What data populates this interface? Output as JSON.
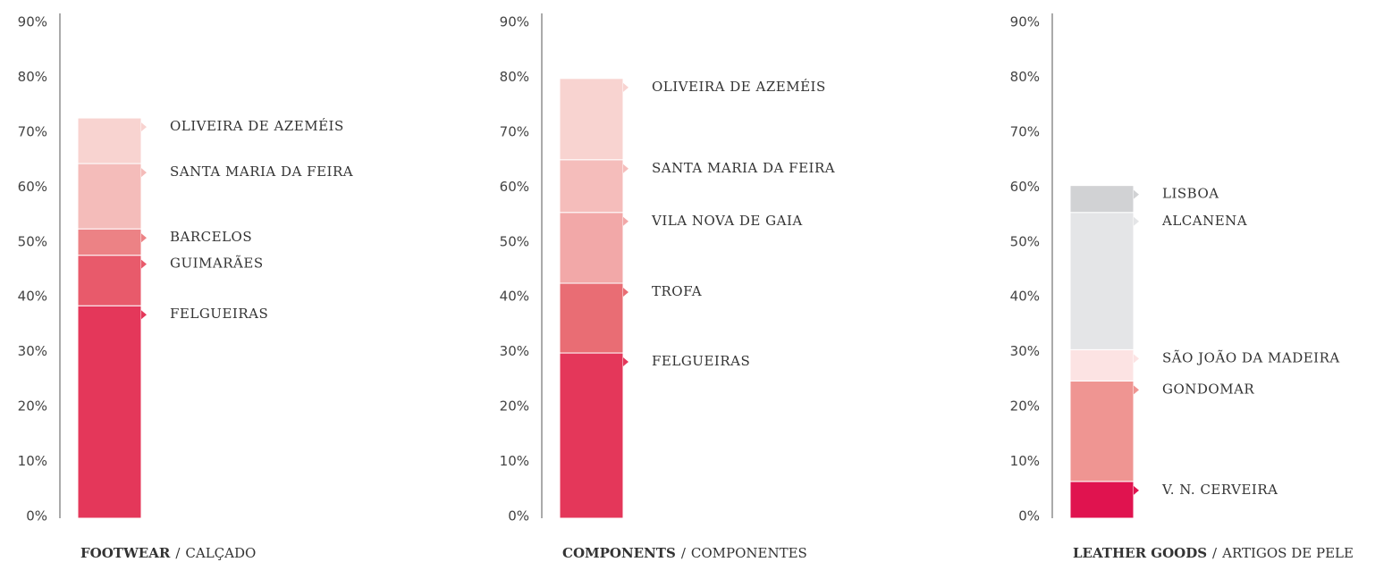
{
  "chart_data": [
    {
      "type": "stacked-bar",
      "title_parts": [
        "FOOTWEAR",
        "/",
        "CALÇADO"
      ],
      "ylim": [
        0,
        90
      ],
      "yticks": [
        {
          "value": 0,
          "label": "0%"
        },
        {
          "value": 10,
          "label": "10%"
        },
        {
          "value": 20,
          "label": "20%"
        },
        {
          "value": 30,
          "label": "30%"
        },
        {
          "value": 40,
          "label": "40%"
        },
        {
          "value": 50,
          "label": "50%"
        },
        {
          "value": 60,
          "label": "60%"
        },
        {
          "value": 70,
          "label": "70%"
        },
        {
          "value": 80,
          "label": "80%"
        },
        {
          "value": 90,
          "label": "90%"
        }
      ],
      "series": [
        {
          "name": "FELGUEIRAS",
          "color": "#e4375a",
          "values": [
            38.7
          ]
        },
        {
          "name": "GUIMARÃES",
          "color": "#e85a6b",
          "values": [
            9.2
          ]
        },
        {
          "name": "BARCELOS",
          "color": "#ec8285",
          "values": [
            4.8
          ]
        },
        {
          "name": "SANTA MARIA DA FEIRA",
          "color": "#f4bcba",
          "values": [
            11.9
          ]
        },
        {
          "name": "OLIVEIRA DE AZEMÉIS",
          "color": "#f8d3d0",
          "values": [
            8.3
          ]
        }
      ]
    },
    {
      "type": "stacked-bar",
      "title_parts": [
        "COMPONENTS",
        "/",
        "COMPONENTES"
      ],
      "ylim": [
        0,
        90
      ],
      "yticks": [
        {
          "value": 0,
          "label": "0%"
        },
        {
          "value": 10,
          "label": "10%"
        },
        {
          "value": 20,
          "label": "20%"
        },
        {
          "value": 30,
          "label": "30%"
        },
        {
          "value": 40,
          "label": "40%"
        },
        {
          "value": 50,
          "label": "50%"
        },
        {
          "value": 60,
          "label": "60%"
        },
        {
          "value": 70,
          "label": "70%"
        },
        {
          "value": 80,
          "label": "80%"
        },
        {
          "value": 90,
          "label": "90%"
        }
      ],
      "series": [
        {
          "name": "FELGUEIRAS",
          "color": "#e4375a",
          "values": [
            30.1
          ]
        },
        {
          "name": "TROFA",
          "color": "#e96d74",
          "values": [
            12.7
          ]
        },
        {
          "name": "VILA NOVA DE GAIA",
          "color": "#f2a8a8",
          "values": [
            12.9
          ]
        },
        {
          "name": "SANTA MARIA DA FEIRA",
          "color": "#f5bdbb",
          "values": [
            9.6
          ]
        },
        {
          "name": "OLIVEIRA DE AZEMÉIS",
          "color": "#f8d3d0",
          "values": [
            14.8
          ]
        }
      ]
    },
    {
      "type": "stacked-bar",
      "title_parts": [
        "LEATHER GOODS",
        "/",
        "ARTIGOS DE PELE"
      ],
      "ylim": [
        0,
        90
      ],
      "yticks": [
        {
          "value": 0,
          "label": "0%"
        },
        {
          "value": 10,
          "label": "10%"
        },
        {
          "value": 20,
          "label": "20%"
        },
        {
          "value": 30,
          "label": "30%"
        },
        {
          "value": 40,
          "label": "40%"
        },
        {
          "value": 50,
          "label": "50%"
        },
        {
          "value": 60,
          "label": "60%"
        },
        {
          "value": 70,
          "label": "70%"
        },
        {
          "value": 80,
          "label": "80%"
        },
        {
          "value": 90,
          "label": "90%"
        }
      ],
      "series": [
        {
          "name": "V. N. CERVEIRA",
          "color": "#e0134f",
          "values": [
            6.7
          ]
        },
        {
          "name": "GONDOMAR",
          "color": "#ef9592",
          "values": [
            18.3
          ]
        },
        {
          "name": "SÃO JOÃO DA MADEIRA",
          "color": "#fce3e3",
          "values": [
            5.7
          ]
        },
        {
          "name": "ALCANENA",
          "color": "#e4e5e7",
          "values": [
            25
          ]
        },
        {
          "name": "LISBOA",
          "color": "#d1d2d4",
          "values": [
            4.9
          ]
        }
      ]
    }
  ]
}
